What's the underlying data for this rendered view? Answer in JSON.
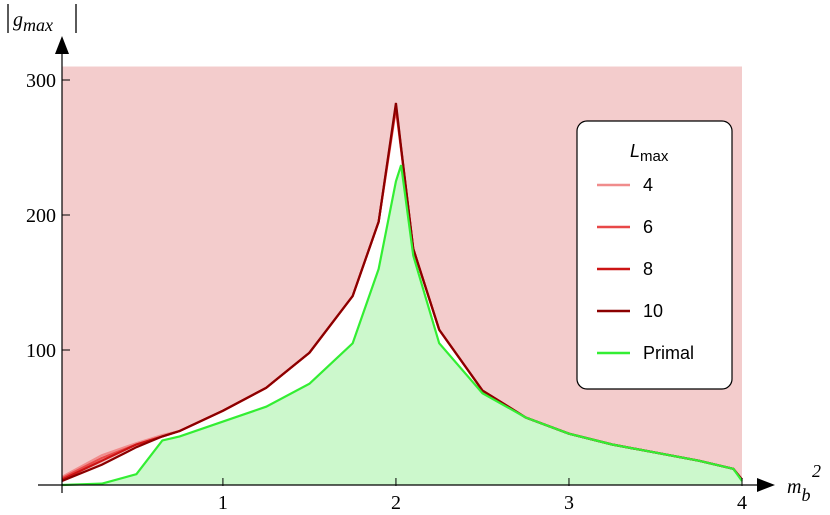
{
  "chart_data": {
    "type": "line",
    "ylabel": {
      "text": "g",
      "sub": "max"
    },
    "xlabel": {
      "text": "m",
      "sub": "b",
      "sup": "2"
    },
    "legend_title": {
      "text": "L",
      "sub": "max"
    },
    "x": [
      0.07,
      0.3,
      0.5,
      0.65,
      0.75,
      1,
      1.25,
      1.5,
      1.75,
      1.9,
      2,
      2.03,
      2.1,
      2.25,
      2.5,
      2.75,
      3,
      3.25,
      3.5,
      3.75,
      3.95,
      4
    ],
    "series": [
      {
        "name": "4",
        "color": "#f08c8c",
        "values": [
          6,
          22,
          31,
          37,
          40,
          55,
          72,
          98,
          140,
          195,
          278,
          248,
          175,
          115,
          70,
          50,
          38,
          30,
          24,
          18,
          12,
          4
        ]
      },
      {
        "name": "6",
        "color": "#e84848",
        "values": [
          5,
          20,
          30,
          36,
          40,
          55,
          72,
          98,
          140,
          195,
          280,
          249,
          175,
          115,
          70,
          50,
          38,
          30,
          24,
          18,
          12,
          4
        ]
      },
      {
        "name": "8",
        "color": "#cc1414",
        "values": [
          4,
          18,
          30,
          36,
          40,
          55,
          72,
          98,
          140,
          195,
          281,
          249,
          175,
          115,
          70,
          50,
          38,
          30,
          24,
          18,
          12,
          4
        ]
      },
      {
        "name": "10",
        "color": "#8b0000",
        "values": [
          3,
          15,
          28,
          36,
          40,
          55,
          72,
          98,
          140,
          195,
          283,
          250,
          175,
          115,
          70,
          50,
          38,
          30,
          24,
          18,
          12,
          4
        ]
      },
      {
        "name": "Primal",
        "color": "#33ee33",
        "values": [
          0,
          1,
          8,
          33,
          36,
          47,
          58,
          75,
          105,
          160,
          225,
          237,
          170,
          105,
          68,
          50,
          38,
          30,
          24,
          18,
          12,
          3
        ]
      }
    ],
    "dual_fill": "#f3cccc",
    "primal_fill": "#ccf8cc",
    "xlim": [
      0.07,
      4
    ],
    "ylim": [
      0,
      310
    ],
    "xticks": [
      1,
      2,
      3,
      4
    ],
    "yticks": [
      100,
      200,
      300
    ]
  }
}
